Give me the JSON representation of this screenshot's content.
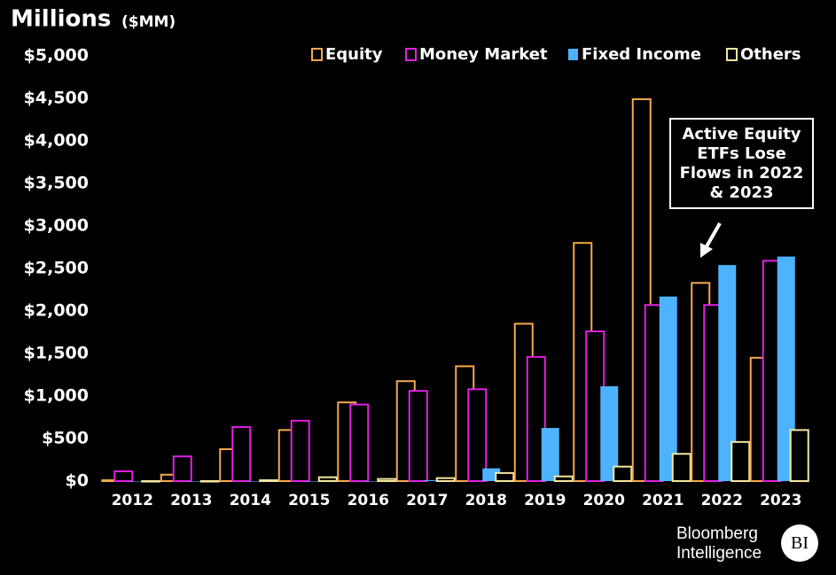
{
  "chart_data": {
    "type": "bar",
    "title": "Millions",
    "subtitle": "($MM)",
    "categories": [
      "2012",
      "2013",
      "2014",
      "2015",
      "2016",
      "2017",
      "2018",
      "2019",
      "2020",
      "2021",
      "2022",
      "2023"
    ],
    "series": [
      {
        "name": "Equity",
        "color": "#f5a94a",
        "style": "outline",
        "values": [
          10,
          75,
          375,
          600,
          925,
          1175,
          1350,
          1850,
          2800,
          4490,
          2330,
          1450
        ]
      },
      {
        "name": "Money Market",
        "color": "#e020e0",
        "style": "outline",
        "values": [
          115,
          290,
          635,
          710,
          900,
          1060,
          1080,
          1460,
          1760,
          2070,
          2070,
          2590
        ]
      },
      {
        "name": "Fixed Income",
        "color": "#4db3ff",
        "style": "filled",
        "values": [
          0,
          0,
          0,
          0,
          0,
          10,
          150,
          625,
          1115,
          2170,
          2540,
          2640
        ]
      },
      {
        "name": "Others",
        "color": "#f5e7a0",
        "style": "outline",
        "values": [
          0,
          0,
          10,
          45,
          25,
          35,
          95,
          55,
          170,
          320,
          460,
          600
        ]
      }
    ],
    "ylim": [
      0,
      5000
    ],
    "yticks": [
      {
        "value": 0,
        "label": "$0"
      },
      {
        "value": 500,
        "label": "$500"
      },
      {
        "value": 1000,
        "label": "$1,000"
      },
      {
        "value": 1500,
        "label": "$1,500"
      },
      {
        "value": 2000,
        "label": "$2,000"
      },
      {
        "value": 2500,
        "label": "$2,500"
      },
      {
        "value": 3000,
        "label": "$3,000"
      },
      {
        "value": 3500,
        "label": "$3,500"
      },
      {
        "value": 4000,
        "label": "$4,000"
      },
      {
        "value": 4500,
        "label": "$4,500"
      },
      {
        "value": 5000,
        "label": "$5,000"
      }
    ],
    "grid": false,
    "legend": "top-right",
    "annotation": "Active Equity ETFs Lose Flows in 2022 & 2023"
  },
  "footer": {
    "brand": "Bloomberg Intelligence",
    "logo": "BI"
  }
}
